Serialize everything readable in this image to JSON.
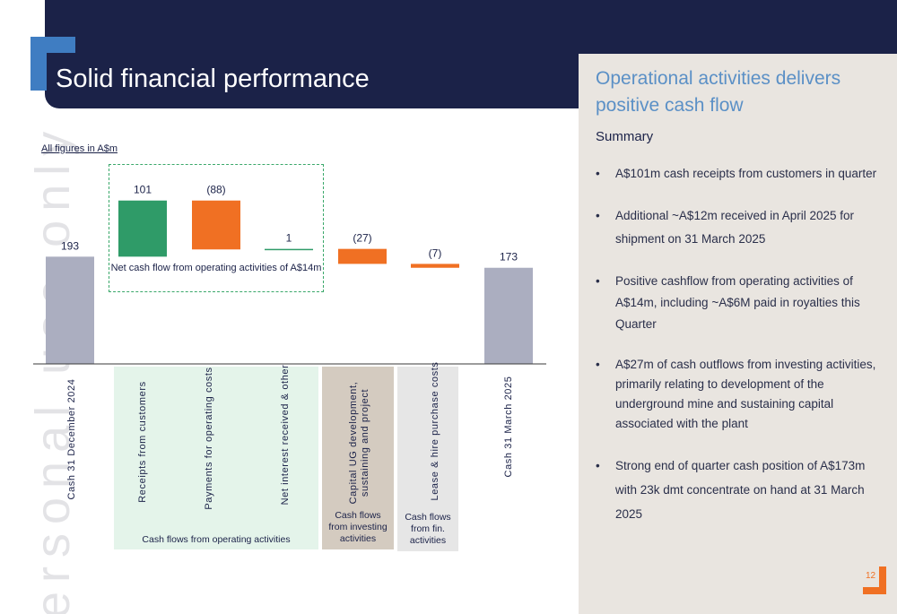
{
  "slide": {
    "title": "Solid financial performance",
    "page_number": "12",
    "watermark": "ersonal use only"
  },
  "chart_note": "All figures in A$m",
  "chart_data": {
    "type": "waterfall",
    "title": "",
    "xlabel": "",
    "ylabel": "",
    "units": "A$m",
    "categories": [
      "Cash 31 December 2024",
      "Receipts from customers",
      "Payments for operating costs",
      "Net interest received & other",
      "Capital UG development, sustaining and project",
      "Lease & hire purchase costs",
      "Cash 31 March 2025"
    ],
    "values": [
      193,
      101,
      -88,
      1,
      -27,
      -7,
      173
    ],
    "data_labels": [
      "193",
      "101",
      "(88)",
      "1",
      "(27)",
      "(7)",
      "173"
    ],
    "bar_kinds": [
      "total",
      "increase",
      "decrease",
      "increase",
      "decrease",
      "decrease",
      "total"
    ],
    "groups": [
      {
        "label": "Cash flows from operating activities",
        "members": [
          1,
          2,
          3
        ]
      },
      {
        "label": "Cash flows from investing activities",
        "members": [
          4
        ]
      },
      {
        "label": "Cash flows from fin. activities",
        "members": [
          5
        ]
      }
    ],
    "annotation": "Net cash flow from operating activities of A$14m",
    "colors": {
      "total": "#abaec0",
      "increase": "#2f9b68",
      "decrease": "#f07023",
      "operating_group": "#e4f4ea",
      "investing_group": "#d4cbc0",
      "financing_group": "#e6e6e6",
      "dashed_border": "#3aa86a"
    }
  },
  "panel": {
    "heading": "Operational activities delivers positive cash flow",
    "summary_title": "Summary",
    "bullet_symbol": "•",
    "bullets": [
      "A$101m cash receipts from customers in quarter",
      "Additional ~A$12m received in April 2025 for shipment on 31 March 2025",
      "Positive cashflow from operating activities of A$14m, including ~A$6M paid in royalties this Quarter",
      "A$27m of cash outflows from investing activities, primarily relating to development of the underground mine and sustaining capital associated with the plant",
      "Strong end of quarter cash position of A$173m with 23k dmt concentrate on hand at 31 March 2025"
    ]
  }
}
